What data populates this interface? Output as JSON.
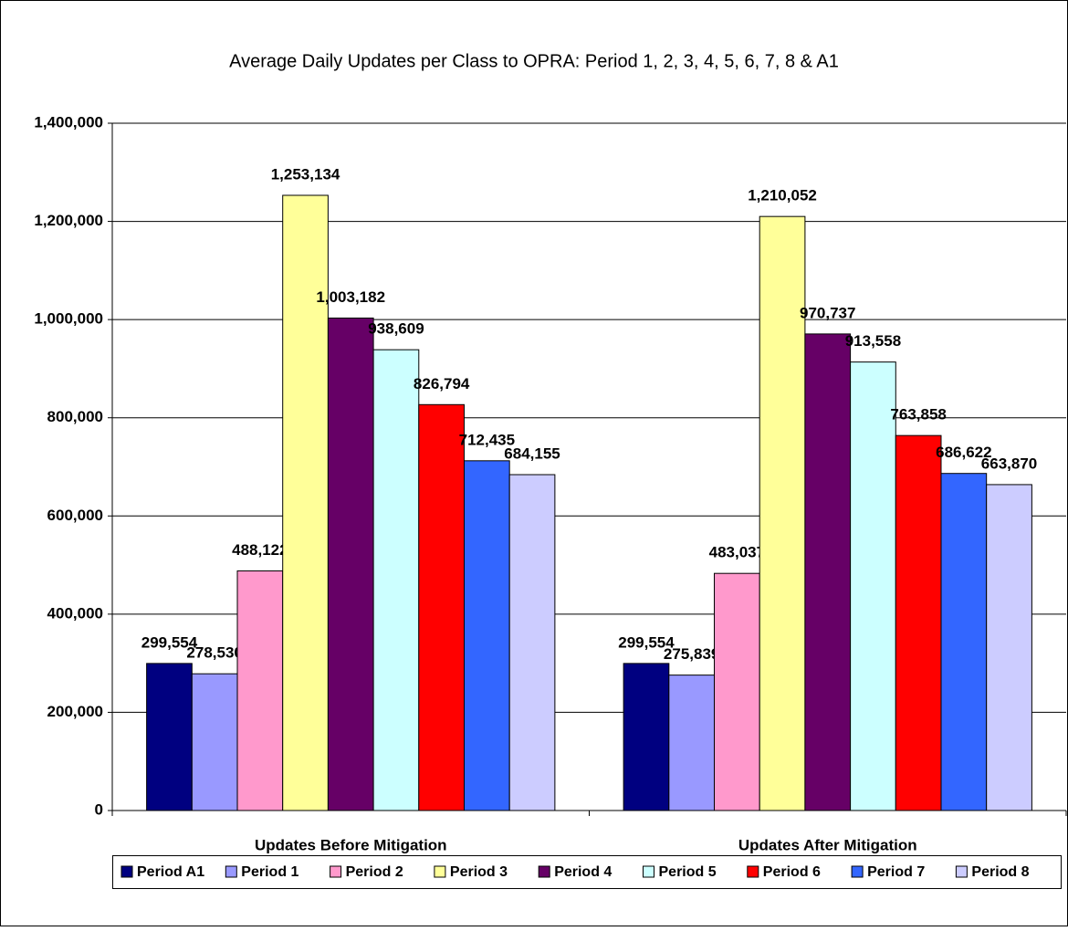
{
  "chart_data": {
    "type": "bar",
    "title": "Average Daily Updates per Class to OPRA: Period 1, 2, 3, 4, 5, 6, 7, 8 & A1",
    "categories": [
      "Updates Before Mitigation",
      "Updates After Mitigation"
    ],
    "series": [
      {
        "name": "Period A1",
        "color": "#000080",
        "values": [
          299554,
          299554
        ],
        "value_labels": [
          "299,554",
          "299,554"
        ]
      },
      {
        "name": "Period 1",
        "color": "#9999ff",
        "values": [
          278530,
          275839
        ],
        "value_labels": [
          "278,530",
          "275,839"
        ]
      },
      {
        "name": "Period 2",
        "color": "#ff99cc",
        "values": [
          488122,
          483037
        ],
        "value_labels": [
          "488,122",
          "483,037"
        ]
      },
      {
        "name": "Period 3",
        "color": "#ffff99",
        "values": [
          1253134,
          1210052
        ],
        "value_labels": [
          "1,253,134",
          "1,210,052"
        ]
      },
      {
        "name": "Period 4",
        "color": "#660066",
        "values": [
          1003182,
          970737
        ],
        "value_labels": [
          "1,003,182",
          "970,737"
        ]
      },
      {
        "name": "Period 5",
        "color": "#ccffff",
        "values": [
          938609,
          913558
        ],
        "value_labels": [
          "938,609",
          "913,558"
        ]
      },
      {
        "name": "Period 6",
        "color": "#ff0000",
        "values": [
          826794,
          763858
        ],
        "value_labels": [
          "826,794",
          "763,858"
        ]
      },
      {
        "name": "Period 7",
        "color": "#3366ff",
        "values": [
          712435,
          686622
        ],
        "value_labels": [
          "712,435",
          "686,622"
        ]
      },
      {
        "name": "Period 8",
        "color": "#ccccff",
        "values": [
          684155,
          663870
        ],
        "value_labels": [
          "684,155",
          "663,870"
        ]
      }
    ],
    "ylim": [
      0,
      1400000
    ],
    "yticks": [
      0,
      {
        "value": 200000,
        "label": "200,000"
      },
      {
        "value": 400000,
        "label": "400,000"
      },
      {
        "value": 600000,
        "label": "600,000"
      },
      {
        "value": 800000,
        "label": "800,000"
      },
      {
        "value": 1000000,
        "label": "1,000,000"
      },
      {
        "value": 1200000,
        "label": "1,200,000"
      },
      {
        "value": 1400000,
        "label": "1,400,000"
      }
    ],
    "grid": true,
    "legend": "bottom"
  }
}
